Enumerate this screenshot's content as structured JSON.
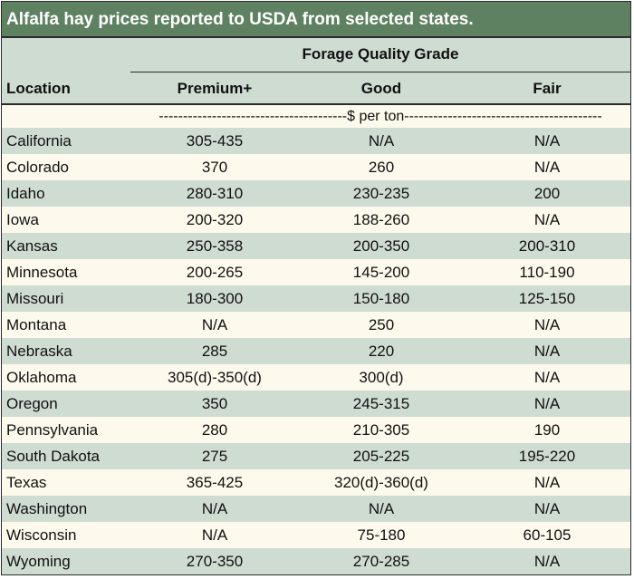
{
  "title": "Alfalfa hay prices reported to USDA from selected states.",
  "header": {
    "group_label": "Forage Quality Grade",
    "location": "Location",
    "premium": "Premium+",
    "good": "Good",
    "fair": "Fair"
  },
  "units_label": "---------------------------------------$ per ton-----------------------------------------",
  "colors": {
    "title_bg": "#5e8162",
    "band": "#cfdcd2",
    "cream": "#fdf9ec"
  },
  "rows": [
    {
      "location": "California",
      "premium": "305-435",
      "good": "N/A",
      "fair": "N/A"
    },
    {
      "location": "Colorado",
      "premium": "370",
      "good": "260",
      "fair": "N/A"
    },
    {
      "location": "Idaho",
      "premium": "280-310",
      "good": "230-235",
      "fair": "200"
    },
    {
      "location": "Iowa",
      "premium": "200-320",
      "good": "188-260",
      "fair": "N/A"
    },
    {
      "location": "Kansas",
      "premium": "250-358",
      "good": "200-350",
      "fair": "200-310"
    },
    {
      "location": "Minnesota",
      "premium": "200-265",
      "good": "145-200",
      "fair": "110-190"
    },
    {
      "location": "Missouri",
      "premium": "180-300",
      "good": "150-180",
      "fair": "125-150"
    },
    {
      "location": "Montana",
      "premium": "N/A",
      "good": "250",
      "fair": "N/A"
    },
    {
      "location": "Nebraska",
      "premium": "285",
      "good": "220",
      "fair": "N/A"
    },
    {
      "location": "Oklahoma",
      "premium": "305(d)-350(d)",
      "good": "300(d)",
      "fair": "N/A"
    },
    {
      "location": "Oregon",
      "premium": "350",
      "good": "245-315",
      "fair": "N/A"
    },
    {
      "location": "Pennsylvania",
      "premium": "280",
      "good": "210-305",
      "fair": "190"
    },
    {
      "location": "South Dakota",
      "premium": "275",
      "good": "205-225",
      "fair": "195-220"
    },
    {
      "location": "Texas",
      "premium": "365-425",
      "good": "320(d)-360(d)",
      "fair": "N/A"
    },
    {
      "location": "Washington",
      "premium": "N/A",
      "good": "N/A",
      "fair": "N/A"
    },
    {
      "location": "Wisconsin",
      "premium": "N/A",
      "good": "75-180",
      "fair": "60-105"
    },
    {
      "location": "Wyoming",
      "premium": "270-350",
      "good": "270-285",
      "fair": "N/A"
    }
  ]
}
